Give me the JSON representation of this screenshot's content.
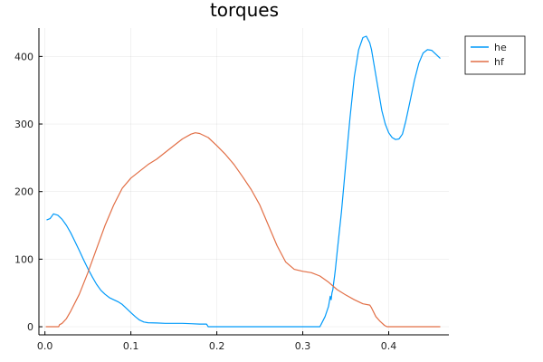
{
  "chart_data": {
    "type": "line",
    "title": "torques",
    "xlabel": "",
    "ylabel": "",
    "xlim": [
      -0.007,
      0.47
    ],
    "ylim": [
      -12,
      442
    ],
    "xticks": [
      {
        "value": 0.0,
        "label": "0.0"
      },
      {
        "value": 0.1,
        "label": "0.1"
      },
      {
        "value": 0.2,
        "label": "0.2"
      },
      {
        "value": 0.3,
        "label": "0.3"
      },
      {
        "value": 0.4,
        "label": "0.4"
      }
    ],
    "yticks": [
      {
        "value": 0,
        "label": "0"
      },
      {
        "value": 100,
        "label": "100"
      },
      {
        "value": 200,
        "label": "200"
      },
      {
        "value": 300,
        "label": "300"
      },
      {
        "value": 400,
        "label": "400"
      }
    ],
    "grid": true,
    "legend": "top-right, outside plot",
    "series": [
      {
        "name": "he",
        "color": "#009AFA",
        "x": [
          0.002,
          0.006,
          0.01,
          0.015,
          0.02,
          0.025,
          0.03,
          0.035,
          0.04,
          0.045,
          0.05,
          0.055,
          0.06,
          0.065,
          0.07,
          0.075,
          0.08,
          0.085,
          0.09,
          0.095,
          0.1,
          0.105,
          0.11,
          0.115,
          0.12,
          0.13,
          0.14,
          0.15,
          0.16,
          0.17,
          0.18,
          0.188,
          0.19,
          0.2,
          0.22,
          0.25,
          0.28,
          0.3,
          0.32,
          0.322,
          0.326,
          0.33,
          0.332,
          0.333,
          0.334,
          0.335,
          0.336,
          0.337,
          0.338,
          0.34,
          0.345,
          0.35,
          0.355,
          0.36,
          0.365,
          0.37,
          0.374,
          0.378,
          0.38,
          0.384,
          0.388,
          0.392,
          0.396,
          0.4,
          0.404,
          0.408,
          0.412,
          0.416,
          0.42,
          0.425,
          0.43,
          0.435,
          0.44,
          0.445,
          0.45,
          0.455,
          0.46
        ],
        "y": [
          158,
          160,
          167,
          165,
          159,
          150,
          139,
          126,
          113,
          99,
          86,
          74,
          63,
          54,
          48,
          43,
          40,
          37,
          33,
          27,
          21,
          15,
          10,
          7,
          6,
          5.5,
          5,
          5,
          5,
          4.5,
          4,
          4,
          0,
          0,
          0,
          0,
          0,
          0,
          0,
          5,
          15,
          30,
          45,
          40,
          50,
          55,
          65,
          75,
          85,
          110,
          170,
          240,
          310,
          370,
          410,
          428,
          430,
          420,
          410,
          380,
          350,
          320,
          300,
          287,
          280,
          277,
          278,
          285,
          305,
          335,
          365,
          390,
          405,
          410,
          409,
          403,
          397
        ]
      },
      {
        "name": "hf",
        "color": "#E26F46",
        "x": [
          0.001,
          0.01,
          0.016,
          0.017,
          0.02,
          0.025,
          0.03,
          0.04,
          0.05,
          0.06,
          0.07,
          0.08,
          0.09,
          0.1,
          0.11,
          0.12,
          0.13,
          0.14,
          0.15,
          0.16,
          0.17,
          0.175,
          0.18,
          0.19,
          0.2,
          0.21,
          0.22,
          0.23,
          0.24,
          0.25,
          0.26,
          0.27,
          0.28,
          0.29,
          0.3,
          0.31,
          0.32,
          0.33,
          0.34,
          0.35,
          0.36,
          0.37,
          0.378,
          0.38,
          0.385,
          0.39,
          0.395,
          0.398,
          0.4,
          0.42,
          0.44,
          0.46
        ],
        "y": [
          0,
          0,
          0,
          3,
          5,
          12,
          23,
          48,
          80,
          115,
          150,
          180,
          205,
          220,
          230,
          240,
          248,
          258,
          268,
          278,
          285,
          287,
          286,
          280,
          268,
          255,
          240,
          222,
          203,
          180,
          150,
          120,
          96,
          85,
          82,
          80,
          75,
          66,
          55,
          47,
          40,
          34,
          32,
          28,
          15,
          8,
          2,
          0,
          0,
          0,
          0,
          0
        ]
      }
    ]
  }
}
